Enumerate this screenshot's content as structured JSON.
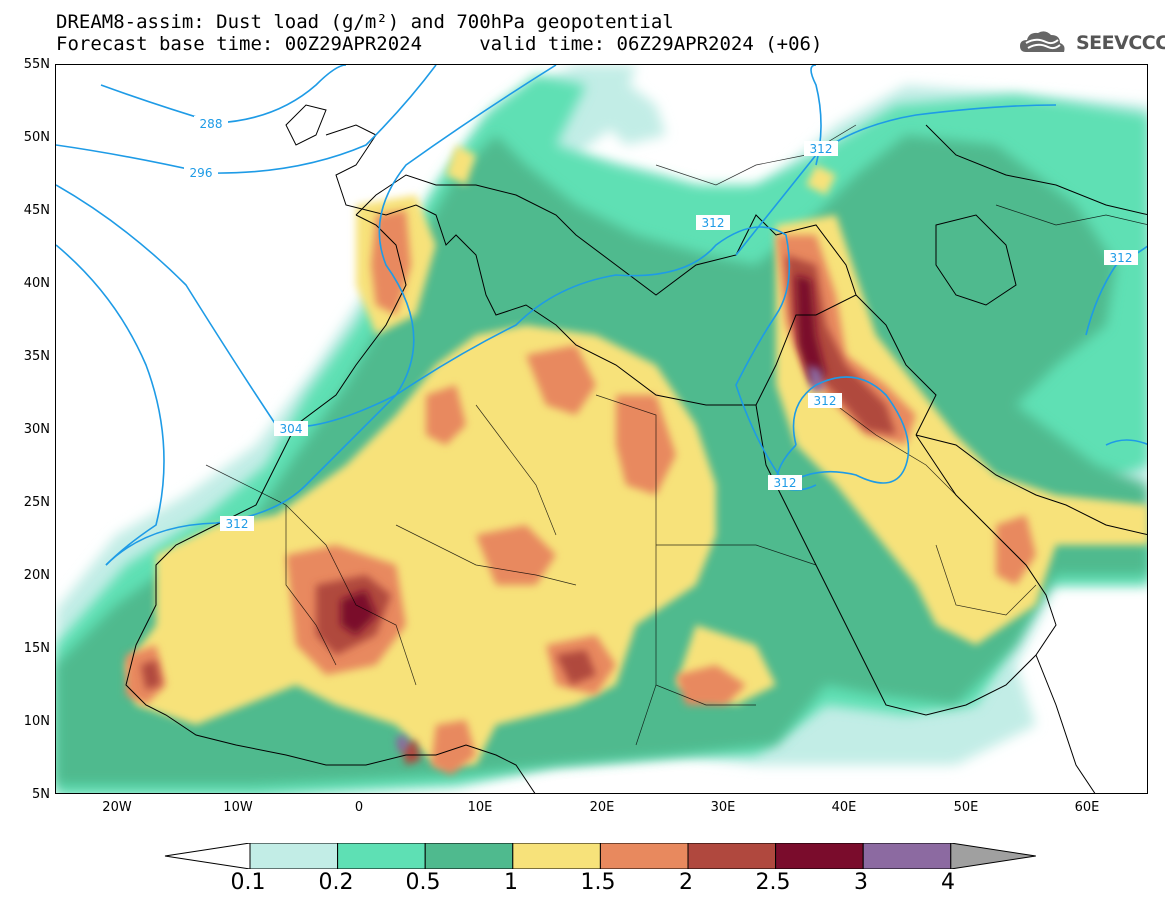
{
  "title": {
    "line1": "DREAM8-assim: Dust load (g/m²) and 700hPa geopotential",
    "line2": "Forecast base time: 00Z29APR2024     valid time: 06Z29APR2024 (+06)"
  },
  "logo": {
    "text": "SEEVCCC",
    "icon": "cloud-logo-icon"
  },
  "map": {
    "lon_range": [
      -25,
      65
    ],
    "lat_range": [
      5,
      55
    ],
    "lat_ticks": [
      "55N",
      "50N",
      "45N",
      "40N",
      "35N",
      "30N",
      "25N",
      "20N",
      "15N",
      "10N",
      "5N"
    ],
    "lat_values": [
      55,
      50,
      45,
      40,
      35,
      30,
      25,
      20,
      15,
      10,
      5
    ],
    "lon_ticks": [
      "20W",
      "10W",
      "0",
      "10E",
      "20E",
      "30E",
      "40E",
      "50E",
      "60E"
    ],
    "lon_values": [
      -20,
      -10,
      0,
      10,
      20,
      30,
      40,
      50,
      60
    ],
    "contour_labels": [
      "288",
      "296",
      "304",
      "312",
      "312",
      "312",
      "312",
      "312",
      "312"
    ],
    "contour_color": "#1e9be6"
  },
  "colorbar": {
    "levels": [
      "0.1",
      "0.2",
      "0.5",
      "1",
      "1.5",
      "2",
      "2.5",
      "3",
      "4"
    ],
    "colors": [
      "#ffffff",
      "#c2ede6",
      "#5ee0b4",
      "#4fba8e",
      "#f7e27a",
      "#e8895e",
      "#b0483e",
      "#7a0c2c",
      "#8c6aa1",
      "#a0a0a0"
    ]
  }
}
